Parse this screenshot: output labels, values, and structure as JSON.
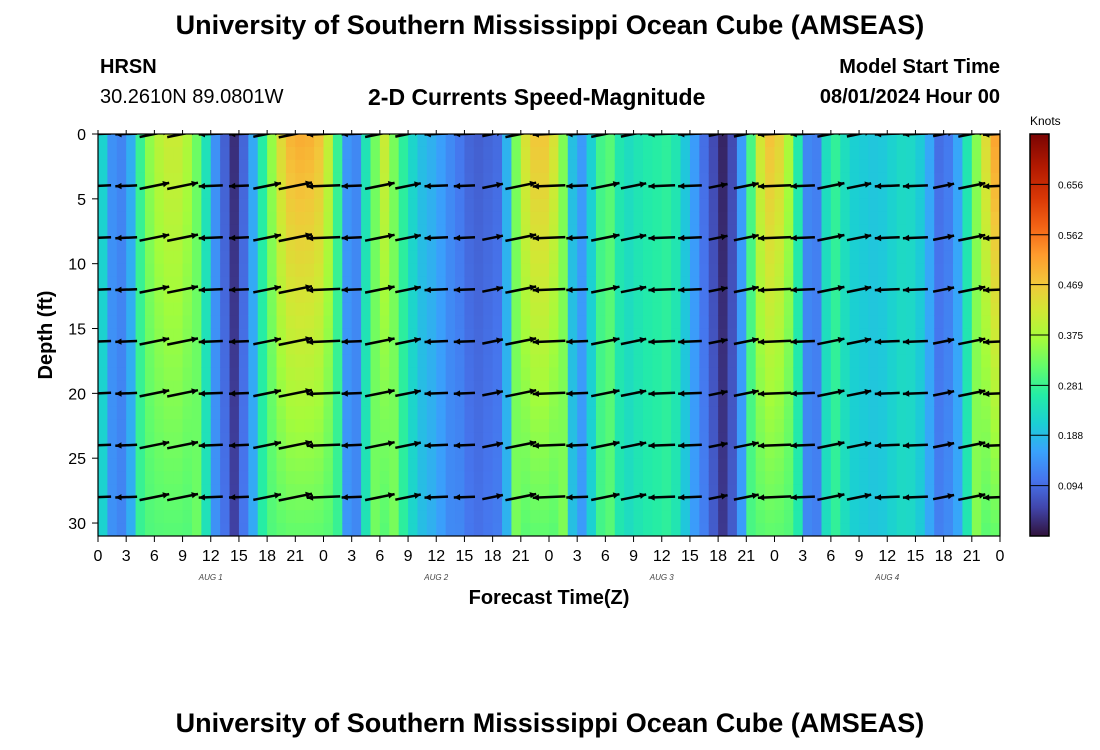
{
  "page": {
    "title_top": "University of Southern Mississippi Ocean Cube (AMSEAS)",
    "title_bottom": "University of Southern Mississippi Ocean Cube (AMSEAS)",
    "station": "HRSN",
    "coordinates": "30.2610N  89.0801W",
    "subtitle": "2-D Currents Speed-Magnitude",
    "model_start_label": "Model Start Time",
    "model_start_value": "08/01/2024 Hour 00"
  },
  "chart_data": {
    "type": "heatmap",
    "title": "2-D Currents Speed-Magnitude",
    "xlabel": "Forecast Time(Z)",
    "ylabel": "Depth (ft)",
    "xlim_hours": [
      0,
      96
    ],
    "ylim": [
      0,
      31
    ],
    "x_ticks": [
      {
        "hour": 0,
        "label": "0"
      },
      {
        "hour": 3,
        "label": "3"
      },
      {
        "hour": 6,
        "label": "6"
      },
      {
        "hour": 9,
        "label": "9"
      },
      {
        "hour": 12,
        "label": "12"
      },
      {
        "hour": 15,
        "label": "15"
      },
      {
        "hour": 18,
        "label": "18"
      },
      {
        "hour": 21,
        "label": "21"
      },
      {
        "hour": 24,
        "label": "0"
      },
      {
        "hour": 27,
        "label": "3"
      },
      {
        "hour": 30,
        "label": "6"
      },
      {
        "hour": 33,
        "label": "9"
      },
      {
        "hour": 36,
        "label": "12"
      },
      {
        "hour": 39,
        "label": "15"
      },
      {
        "hour": 42,
        "label": "18"
      },
      {
        "hour": 45,
        "label": "21"
      },
      {
        "hour": 48,
        "label": "0"
      },
      {
        "hour": 51,
        "label": "3"
      },
      {
        "hour": 54,
        "label": "6"
      },
      {
        "hour": 57,
        "label": "9"
      },
      {
        "hour": 60,
        "label": "12"
      },
      {
        "hour": 63,
        "label": "15"
      },
      {
        "hour": 66,
        "label": "18"
      },
      {
        "hour": 69,
        "label": "21"
      },
      {
        "hour": 72,
        "label": "0"
      },
      {
        "hour": 75,
        "label": "3"
      },
      {
        "hour": 78,
        "label": "6"
      },
      {
        "hour": 81,
        "label": "9"
      },
      {
        "hour": 84,
        "label": "12"
      },
      {
        "hour": 87,
        "label": "15"
      },
      {
        "hour": 90,
        "label": "18"
      },
      {
        "hour": 93,
        "label": "21"
      },
      {
        "hour": 96,
        "label": "0"
      }
    ],
    "y_ticks": [
      0,
      5,
      10,
      15,
      20,
      25,
      30
    ],
    "day_labels": [
      {
        "hour": 12,
        "label": "AUG 1"
      },
      {
        "hour": 36,
        "label": "AUG 2"
      },
      {
        "hour": 60,
        "label": "AUG 3"
      },
      {
        "hour": 84,
        "label": "AUG 4"
      }
    ],
    "colorbar": {
      "units": "Knots",
      "min": 0.0,
      "max": 0.75,
      "ticks": [
        0.094,
        0.188,
        0.281,
        0.375,
        0.469,
        0.562,
        0.656
      ],
      "tick_labels": [
        "0.094",
        "0.188",
        "0.281",
        "0.375",
        "0.469",
        "0.562",
        "0.656"
      ]
    },
    "vector_depths_ft": [
      0,
      4,
      8,
      12,
      16,
      20,
      24,
      28
    ],
    "vector_hours": [
      0,
      3,
      6,
      9,
      12,
      15,
      18,
      21,
      24,
      27,
      30,
      33,
      36,
      39,
      42,
      45,
      48,
      51,
      54,
      57,
      60,
      63,
      66,
      69,
      72,
      75,
      78,
      81,
      84,
      87,
      90,
      93,
      96
    ],
    "speed_profile_knots": [
      {
        "hour": 0,
        "value": 0.26
      },
      {
        "hour": 1.5,
        "value": 0.14
      },
      {
        "hour": 3,
        "value": 0.12
      },
      {
        "hour": 5,
        "value": 0.34
      },
      {
        "hour": 7,
        "value": 0.42
      },
      {
        "hour": 9,
        "value": 0.42
      },
      {
        "hour": 11,
        "value": 0.3
      },
      {
        "hour": 12.5,
        "value": 0.14
      },
      {
        "hour": 14.5,
        "value": 0.03
      },
      {
        "hour": 16,
        "value": 0.12
      },
      {
        "hour": 18,
        "value": 0.32
      },
      {
        "hour": 20,
        "value": 0.5
      },
      {
        "hour": 22,
        "value": 0.52
      },
      {
        "hour": 24,
        "value": 0.48
      },
      {
        "hour": 26,
        "value": 0.22
      },
      {
        "hour": 27,
        "value": 0.07
      },
      {
        "hour": 28.5,
        "value": 0.25
      },
      {
        "hour": 30.5,
        "value": 0.42
      },
      {
        "hour": 32,
        "value": 0.3
      },
      {
        "hour": 34,
        "value": 0.2
      },
      {
        "hour": 36,
        "value": 0.17
      },
      {
        "hour": 38,
        "value": 0.12
      },
      {
        "hour": 40,
        "value": 0.08
      },
      {
        "hour": 43,
        "value": 0.1
      },
      {
        "hour": 45,
        "value": 0.42
      },
      {
        "hour": 47,
        "value": 0.5
      },
      {
        "hour": 49,
        "value": 0.42
      },
      {
        "hour": 51,
        "value": 0.12
      },
      {
        "hour": 53,
        "value": 0.25
      },
      {
        "hour": 54,
        "value": 0.34
      },
      {
        "hour": 56,
        "value": 0.23
      },
      {
        "hour": 58,
        "value": 0.26
      },
      {
        "hour": 61,
        "value": 0.28
      },
      {
        "hour": 63,
        "value": 0.18
      },
      {
        "hour": 64.5,
        "value": 0.1
      },
      {
        "hour": 66.5,
        "value": 0.02
      },
      {
        "hour": 68,
        "value": 0.08
      },
      {
        "hour": 69.5,
        "value": 0.3
      },
      {
        "hour": 71,
        "value": 0.5
      },
      {
        "hour": 73,
        "value": 0.45
      },
      {
        "hour": 75,
        "value": 0.2
      },
      {
        "hour": 76,
        "value": 0.06
      },
      {
        "hour": 78,
        "value": 0.3
      },
      {
        "hour": 80,
        "value": 0.22
      },
      {
        "hour": 83,
        "value": 0.2
      },
      {
        "hour": 86,
        "value": 0.24
      },
      {
        "hour": 88,
        "value": 0.2
      },
      {
        "hour": 89.5,
        "value": 0.1
      },
      {
        "hour": 91,
        "value": 0.12
      },
      {
        "hour": 93,
        "value": 0.3
      },
      {
        "hour": 95,
        "value": 0.5
      },
      {
        "hour": 96,
        "value": 0.55
      }
    ]
  }
}
